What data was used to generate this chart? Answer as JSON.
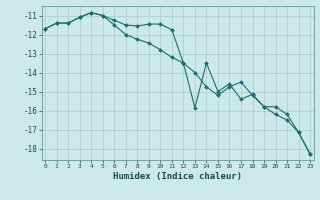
{
  "xlabel": "Humidex (Indice chaleur)",
  "background_color": "#cce8e8",
  "grid_color": "#aacccc",
  "line_color": "#1a6e6e",
  "x_ticks": [
    0,
    1,
    2,
    3,
    4,
    5,
    6,
    7,
    8,
    9,
    10,
    11,
    12,
    13,
    14,
    15,
    16,
    17,
    18,
    19,
    20,
    21,
    22,
    23
  ],
  "y_ticks": [
    -11,
    -12,
    -13,
    -14,
    -15,
    -16,
    -17,
    -18
  ],
  "ylim": [
    -18.6,
    -10.5
  ],
  "xlim": [
    -0.3,
    23.3
  ],
  "line1_x": [
    0,
    1,
    2,
    3,
    4,
    5,
    6,
    7,
    8,
    9,
    10,
    11,
    12,
    13,
    14,
    15,
    16,
    17,
    18,
    19,
    20,
    21,
    22,
    23
  ],
  "line1_y": [
    -11.7,
    -11.4,
    -11.4,
    -11.1,
    -10.85,
    -11.0,
    -11.25,
    -11.5,
    -11.55,
    -11.45,
    -11.45,
    -11.75,
    -13.5,
    -14.0,
    -14.75,
    -15.2,
    -14.75,
    -14.5,
    -15.2,
    -15.8,
    -15.8,
    -16.2,
    -17.15,
    -18.3
  ],
  "line2_x": [
    0,
    1,
    2,
    3,
    4,
    5,
    6,
    7,
    8,
    9,
    10,
    11,
    12,
    13,
    14,
    15,
    16,
    17,
    18,
    19,
    20,
    21,
    22,
    23
  ],
  "line2_y": [
    -11.7,
    -11.4,
    -11.4,
    -11.1,
    -10.85,
    -11.0,
    -11.5,
    -12.0,
    -12.25,
    -12.45,
    -12.8,
    -13.2,
    -13.5,
    -15.85,
    -13.5,
    -15.0,
    -14.6,
    -15.4,
    -15.15,
    -15.8,
    -16.2,
    -16.5,
    -17.15,
    -18.3
  ]
}
